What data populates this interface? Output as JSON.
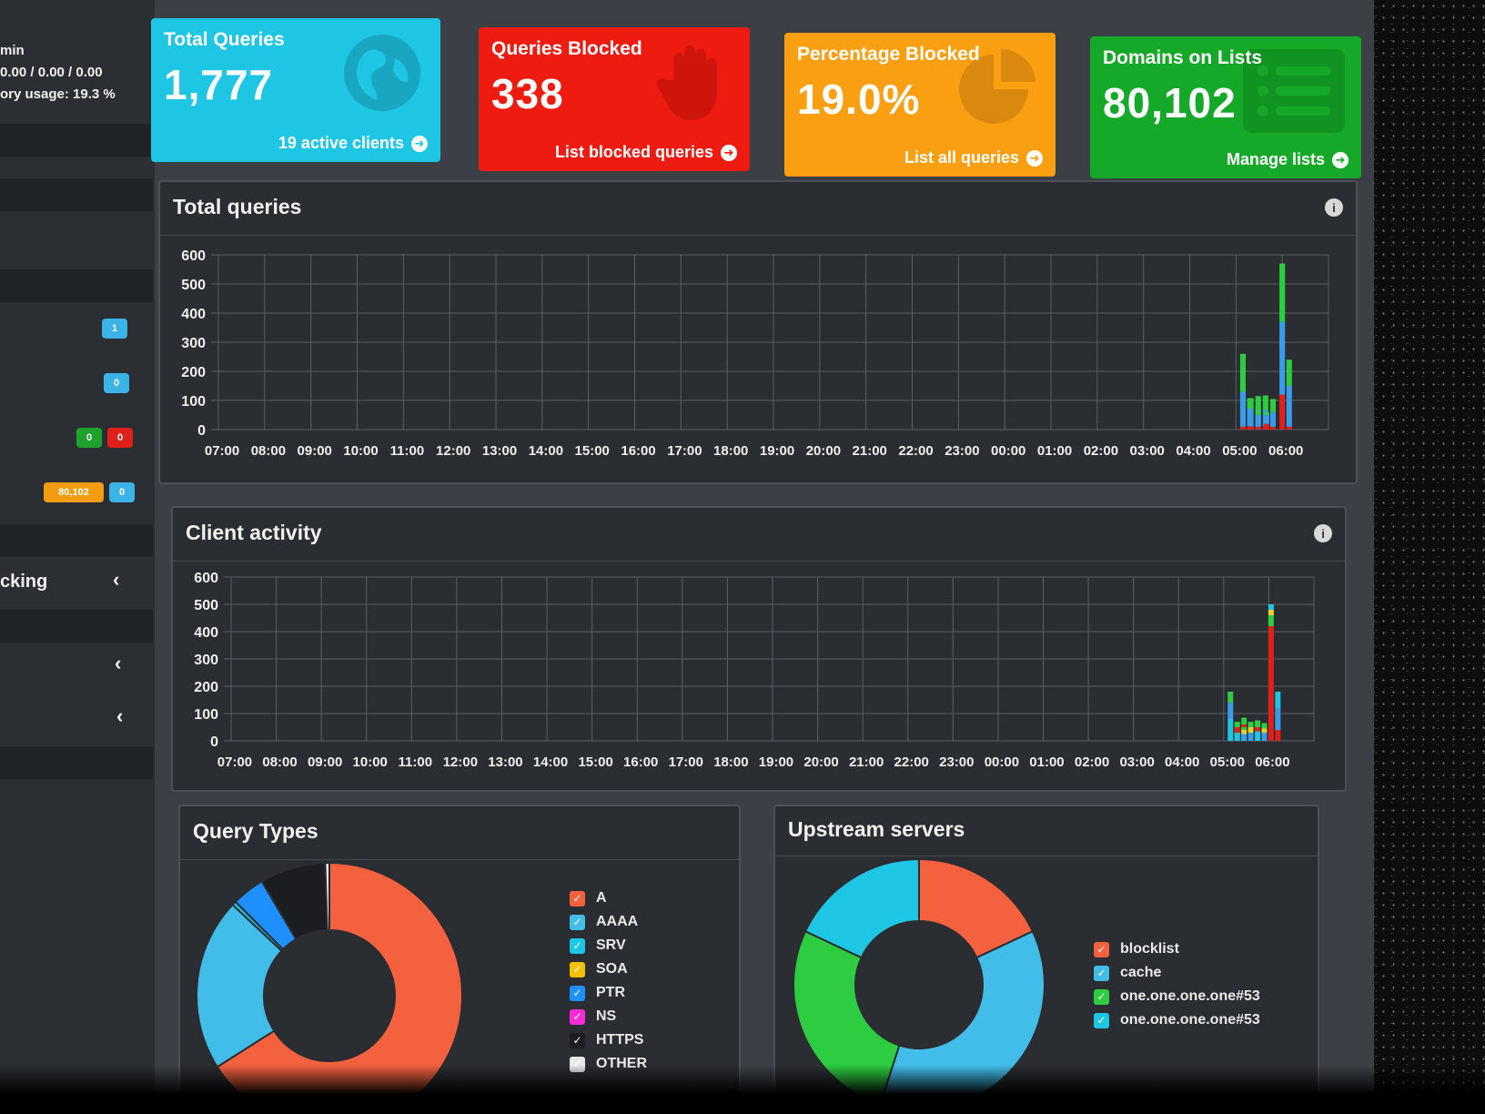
{
  "sidebar": {
    "status_lines": [
      "min",
      "0.00 / 0.00 / 0.00",
      "ory usage: 19.3 %"
    ],
    "badges": [
      {
        "text": "1",
        "color": "#3bb3e6"
      },
      {
        "text": "0",
        "color": "#3bb3e6"
      },
      {
        "text": "0",
        "color": "#1fa12e"
      },
      {
        "text": "0",
        "color": "#e0201a"
      },
      {
        "text": "80,102",
        "color": "#f39c12"
      },
      {
        "text": "0",
        "color": "#3bb3e6"
      }
    ],
    "menu_label": "cking"
  },
  "cards": [
    {
      "title": "Total Queries",
      "value": "1,777",
      "footer": "19 active clients",
      "color": "#1fc6e4",
      "icon": "globe-icon"
    },
    {
      "title": "Queries Blocked",
      "value": "338",
      "footer": "List blocked queries",
      "color": "#ee1c10",
      "icon": "hand-icon"
    },
    {
      "title": "Percentage Blocked",
      "value": "19.0%",
      "footer": "List all queries",
      "color": "#fa9f12",
      "icon": "pie-chart-icon"
    },
    {
      "title": "Domains on Lists",
      "value": "80,102",
      "footer": "Manage lists",
      "color": "#16a828",
      "icon": "list-icon"
    }
  ],
  "total_queries_panel": {
    "title": "Total queries"
  },
  "client_activity_panel": {
    "title": "Client activity"
  },
  "query_types_panel": {
    "title": "Query Types"
  },
  "upstream_panel": {
    "title": "Upstream servers"
  },
  "chart_data": [
    {
      "type": "bar",
      "stacked": true,
      "x": [
        "07:00",
        "08:00",
        "09:00",
        "10:00",
        "11:00",
        "12:00",
        "13:00",
        "14:00",
        "15:00",
        "16:00",
        "17:00",
        "18:00",
        "19:00",
        "20:00",
        "21:00",
        "22:00",
        "23:00",
        "00:00",
        "01:00",
        "02:00",
        "03:00",
        "04:00",
        "05:00",
        "06:00"
      ],
      "ylim": [
        0,
        600
      ],
      "yticks": [
        0,
        100,
        200,
        300,
        400,
        500,
        600
      ],
      "grid": true,
      "bars": [
        {
          "x": "05:00",
          "offset": 0.15,
          "segments": [
            {
              "color": "#e0201a",
              "value": 10
            },
            {
              "color": "#3b9be8",
              "value": 120
            },
            {
              "color": "#2ecc40",
              "value": 130
            }
          ]
        },
        {
          "x": "05:00",
          "offset": 0.32,
          "segments": [
            {
              "color": "#e0201a",
              "value": 8
            },
            {
              "color": "#3b9be8",
              "value": 60
            },
            {
              "color": "#2ecc40",
              "value": 40
            }
          ]
        },
        {
          "x": "05:00",
          "offset": 0.48,
          "segments": [
            {
              "color": "#e0201a",
              "value": 10
            },
            {
              "color": "#3b9be8",
              "value": 60
            },
            {
              "color": "#2ecc40",
              "value": 45
            }
          ]
        },
        {
          "x": "05:00",
          "offset": 0.64,
          "segments": [
            {
              "color": "#e0201a",
              "value": 12
            },
            {
              "color": "#3b9be8",
              "value": 55
            },
            {
              "color": "#2ecc40",
              "value": 50
            }
          ]
        },
        {
          "x": "05:00",
          "offset": 0.8,
          "segments": [
            {
              "color": "#e0201a",
              "value": 10
            },
            {
              "color": "#3b9be8",
              "value": 50
            },
            {
              "color": "#2ecc40",
              "value": 45
            }
          ]
        },
        {
          "x": "06:00",
          "offset": -0.7,
          "segments": [
            {
              "color": "#e0201a",
              "value": 12
            },
            {
              "color": "#3b9be8",
              "value": 60
            },
            {
              "color": "#2ecc40",
              "value": 35
            }
          ]
        },
        {
          "x": "06:00",
          "offset": -0.52,
          "segments": [
            {
              "color": "#e0201a",
              "value": 10
            },
            {
              "color": "#3b9be8",
              "value": 40
            },
            {
              "color": "#2ecc40",
              "value": 30
            }
          ]
        },
        {
          "x": "06:00",
          "offset": -0.34,
          "segments": [
            {
              "color": "#e0201a",
              "value": 20
            },
            {
              "color": "#3b9be8",
              "value": 30
            },
            {
              "color": "#2ecc40",
              "value": 10
            }
          ]
        },
        {
          "x": "06:00",
          "offset": 0.0,
          "segments": [
            {
              "color": "#e0201a",
              "value": 120
            },
            {
              "color": "#3b9be8",
              "value": 250
            },
            {
              "color": "#2ecc40",
              "value": 200
            }
          ]
        },
        {
          "x": "06:00",
          "offset": 0.15,
          "segments": [
            {
              "color": "#e0201a",
              "value": 10
            },
            {
              "color": "#3b9be8",
              "value": 140
            },
            {
              "color": "#2ecc40",
              "value": 90
            }
          ]
        }
      ]
    },
    {
      "type": "bar",
      "stacked": true,
      "x": [
        "07:00",
        "08:00",
        "09:00",
        "10:00",
        "11:00",
        "12:00",
        "13:00",
        "14:00",
        "15:00",
        "16:00",
        "17:00",
        "18:00",
        "19:00",
        "20:00",
        "21:00",
        "22:00",
        "23:00",
        "00:00",
        "01:00",
        "02:00",
        "03:00",
        "04:00",
        "05:00",
        "06:00"
      ],
      "ylim": [
        0,
        600
      ],
      "yticks": [
        0,
        100,
        200,
        300,
        400,
        500,
        600
      ],
      "grid": true,
      "bars": [
        {
          "x": "05:00",
          "offset": 0.15,
          "segments": [
            {
              "color": "#1fc6e4",
              "value": 80
            },
            {
              "color": "#3b9be8",
              "value": 60
            },
            {
              "color": "#2ecc40",
              "value": 40
            }
          ]
        },
        {
          "x": "05:00",
          "offset": 0.3,
          "segments": [
            {
              "color": "#1fc6e4",
              "value": 20
            },
            {
              "color": "#e8d22a",
              "value": 15
            },
            {
              "color": "#2ecc40",
              "value": 15
            }
          ]
        },
        {
          "x": "05:00",
          "offset": 0.45,
          "segments": [
            {
              "color": "#1fc6e4",
              "value": 40
            },
            {
              "color": "#e0201a",
              "value": 20
            },
            {
              "color": "#2ecc40",
              "value": 25
            }
          ]
        },
        {
          "x": "05:00",
          "offset": 0.6,
          "segments": [
            {
              "color": "#3b9be8",
              "value": 30
            },
            {
              "color": "#e8d22a",
              "value": 20
            },
            {
              "color": "#2ecc40",
              "value": 20
            }
          ]
        },
        {
          "x": "05:00",
          "offset": 0.75,
          "segments": [
            {
              "color": "#1fc6e4",
              "value": 35
            },
            {
              "color": "#e0201a",
              "value": 15
            },
            {
              "color": "#2ecc40",
              "value": 25
            }
          ]
        },
        {
          "x": "05:00",
          "offset": 0.9,
          "segments": [
            {
              "color": "#3b9be8",
              "value": 30
            },
            {
              "color": "#e8d22a",
              "value": 15
            },
            {
              "color": "#2ecc40",
              "value": 20
            }
          ]
        },
        {
          "x": "06:00",
          "offset": -0.7,
          "segments": [
            {
              "color": "#1fc6e4",
              "value": 30
            },
            {
              "color": "#e0201a",
              "value": 20
            },
            {
              "color": "#2ecc40",
              "value": 20
            }
          ]
        },
        {
          "x": "06:00",
          "offset": -0.55,
          "segments": [
            {
              "color": "#3b9be8",
              "value": 25
            },
            {
              "color": "#e8d22a",
              "value": 15
            },
            {
              "color": "#2ecc40",
              "value": 10
            }
          ]
        },
        {
          "x": "06:00",
          "offset": 0.05,
          "segments": [
            {
              "color": "#e0201a",
              "value": 420
            },
            {
              "color": "#2ecc40",
              "value": 40
            },
            {
              "color": "#e8d22a",
              "value": 20
            },
            {
              "color": "#1fc6e4",
              "value": 20
            }
          ]
        },
        {
          "x": "06:00",
          "offset": 0.2,
          "segments": [
            {
              "color": "#e0201a",
              "value": 40
            },
            {
              "color": "#3b9be8",
              "value": 80
            },
            {
              "color": "#1fc6e4",
              "value": 60
            }
          ]
        }
      ]
    },
    {
      "type": "pie",
      "donut": true,
      "labels": [
        "A",
        "AAAA",
        "SRV",
        "SOA",
        "PTR",
        "NS",
        "HTTPS",
        "OTHER"
      ],
      "values": [
        66,
        21,
        0.5,
        0,
        4,
        0,
        8,
        0.5
      ],
      "colors": [
        "#f4613f",
        "#42bdea",
        "#1fc6e4",
        "#f3c000",
        "#1e90ff",
        "#ff2bd6",
        "#1b1d20",
        "#e8e8e8"
      ]
    },
    {
      "type": "pie",
      "donut": true,
      "labels": [
        "blocklist",
        "cache",
        "one.one.one.one#53",
        "one.one.one.one#53"
      ],
      "values": [
        18,
        37,
        27,
        18
      ],
      "colors": [
        "#f4613f",
        "#42bdea",
        "#2ecc40",
        "#1fc6e4"
      ]
    }
  ]
}
